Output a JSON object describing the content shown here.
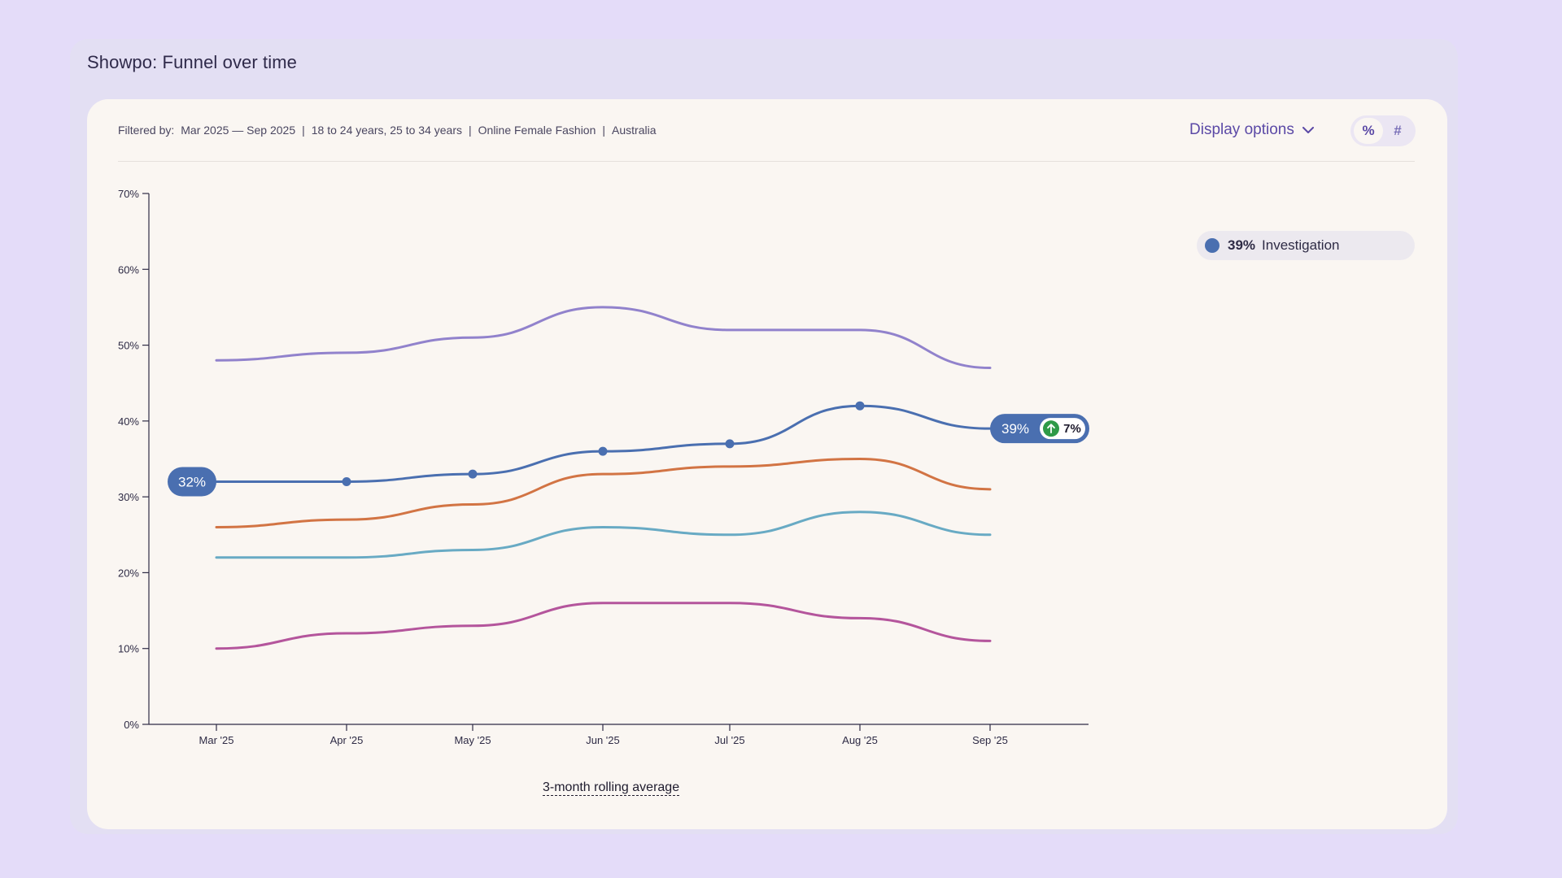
{
  "page_title": "Showpo: Funnel over time",
  "filter": {
    "prefix": "Filtered by:",
    "period": "Mar 2025 — Sep 2025",
    "ages": "18 to 24 years, 25 to 34 years",
    "category": "Online Female Fashion",
    "region": "Australia"
  },
  "display_options_label": "Display options",
  "toggle": {
    "percent": "%",
    "count": "#",
    "selected": "percent"
  },
  "legend": {
    "value": "39%",
    "label": "Investigation",
    "color": "#4a6fb0"
  },
  "footer_label": "3-month rolling average",
  "colors": {
    "investigation": "#4a6fb0",
    "purple": "#9182cc",
    "orange": "#d27444",
    "teal": "#68aac4",
    "magenta": "#b4559c",
    "up_arrow": "#2e9a48"
  },
  "chart_data": {
    "type": "line",
    "categories": [
      "Mar '25",
      "Apr '25",
      "May '25",
      "Jun '25",
      "Jul '25",
      "Aug '25",
      "Sep '25"
    ],
    "ylim": [
      0,
      70
    ],
    "yticks": [
      "0%",
      "10%",
      "20%",
      "30%",
      "40%",
      "50%",
      "60%",
      "70%"
    ],
    "series": [
      {
        "key": "purple",
        "values": [
          48,
          49,
          51,
          55,
          52,
          52,
          47
        ]
      },
      {
        "key": "investigation",
        "name": "Investigation",
        "values": [
          32,
          32,
          33,
          36,
          37,
          42,
          39
        ],
        "highlight": true
      },
      {
        "key": "orange",
        "values": [
          26,
          27,
          29,
          33,
          34,
          35,
          31
        ]
      },
      {
        "key": "teal",
        "values": [
          22,
          22,
          23,
          26,
          25,
          28,
          25
        ]
      },
      {
        "key": "magenta",
        "values": [
          10,
          12,
          13,
          16,
          16,
          14,
          11
        ]
      }
    ],
    "start_badge": "32%",
    "end_badge": "39%",
    "change_badge": "7%"
  }
}
